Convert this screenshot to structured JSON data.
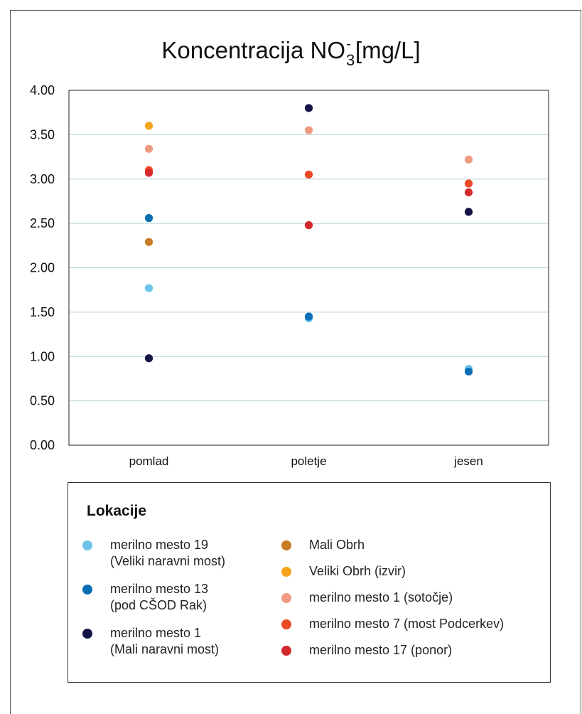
{
  "chart_data": {
    "type": "scatter",
    "title": "Koncentracija NO",
    "title_sub": "3",
    "title_sup": "-",
    "title_unit": "[mg/L]",
    "categories": [
      "pomlad",
      "poletje",
      "jesen"
    ],
    "ylim": [
      0,
      4
    ],
    "yticks": [
      "0.00",
      "0.50",
      "1.00",
      "1.50",
      "2.00",
      "2.50",
      "3.00",
      "3.50",
      "4.00"
    ],
    "grid": true,
    "legend_title": "Lokacije",
    "legend_placement": "bottom",
    "series": [
      {
        "name": "merilno mesto 19 (Veliki naravni most)",
        "color": "#6cc3ea",
        "values": [
          1.77,
          1.43,
          0.86
        ]
      },
      {
        "name": "merilno mesto 13 (pod CŠOD Rak)",
        "color": "#0a6eb5",
        "values": [
          2.56,
          1.45,
          0.83
        ]
      },
      {
        "name": "merilno mesto 1 (Mali naravni most)",
        "color": "#141447",
        "values": [
          0.98,
          3.8,
          2.63
        ]
      },
      {
        "name": "Mali Obrh",
        "color": "#c97a24",
        "values": [
          2.29,
          null,
          null
        ]
      },
      {
        "name": "Veliki Obrh (izvir)",
        "color": "#f5a318",
        "values": [
          3.6,
          null,
          null
        ]
      },
      {
        "name": "merilno mesto 1 (sotočje)",
        "color": "#f09a82",
        "values": [
          3.34,
          3.55,
          3.22
        ]
      },
      {
        "name": "merilno mesto 7 (most Podcerkev)",
        "color": "#ec4a25",
        "values": [
          3.1,
          3.05,
          2.95
        ]
      },
      {
        "name": "merilno mesto 17 (ponor)",
        "color": "#d42a2c",
        "values": [
          3.07,
          2.48,
          2.85
        ]
      }
    ]
  },
  "legend": {
    "title": "Lokacije",
    "left_items": [
      {
        "line1": "merilno mesto 19",
        "line2": "(Veliki naravni most)",
        "color": "#6cc3ea"
      },
      {
        "line1": "merilno mesto 13",
        "line2": "(pod CŠOD Rak)",
        "color": "#0a6eb5"
      },
      {
        "line1": "merilno mesto 1",
        "line2": "(Mali naravni most)",
        "color": "#141447"
      }
    ],
    "right_items": [
      {
        "line1": "Mali Obrh",
        "color": "#c97a24"
      },
      {
        "line1": "Veliki Obrh (izvir)",
        "color": "#f5a318"
      },
      {
        "line1": "merilno mesto 1 (sotočje)",
        "color": "#f09a82"
      },
      {
        "line1": "merilno mesto 7 (most Podcerkev)",
        "color": "#ec4a25"
      },
      {
        "line1": "merilno mesto 17 (ponor)",
        "color": "#d42a2c"
      }
    ]
  }
}
